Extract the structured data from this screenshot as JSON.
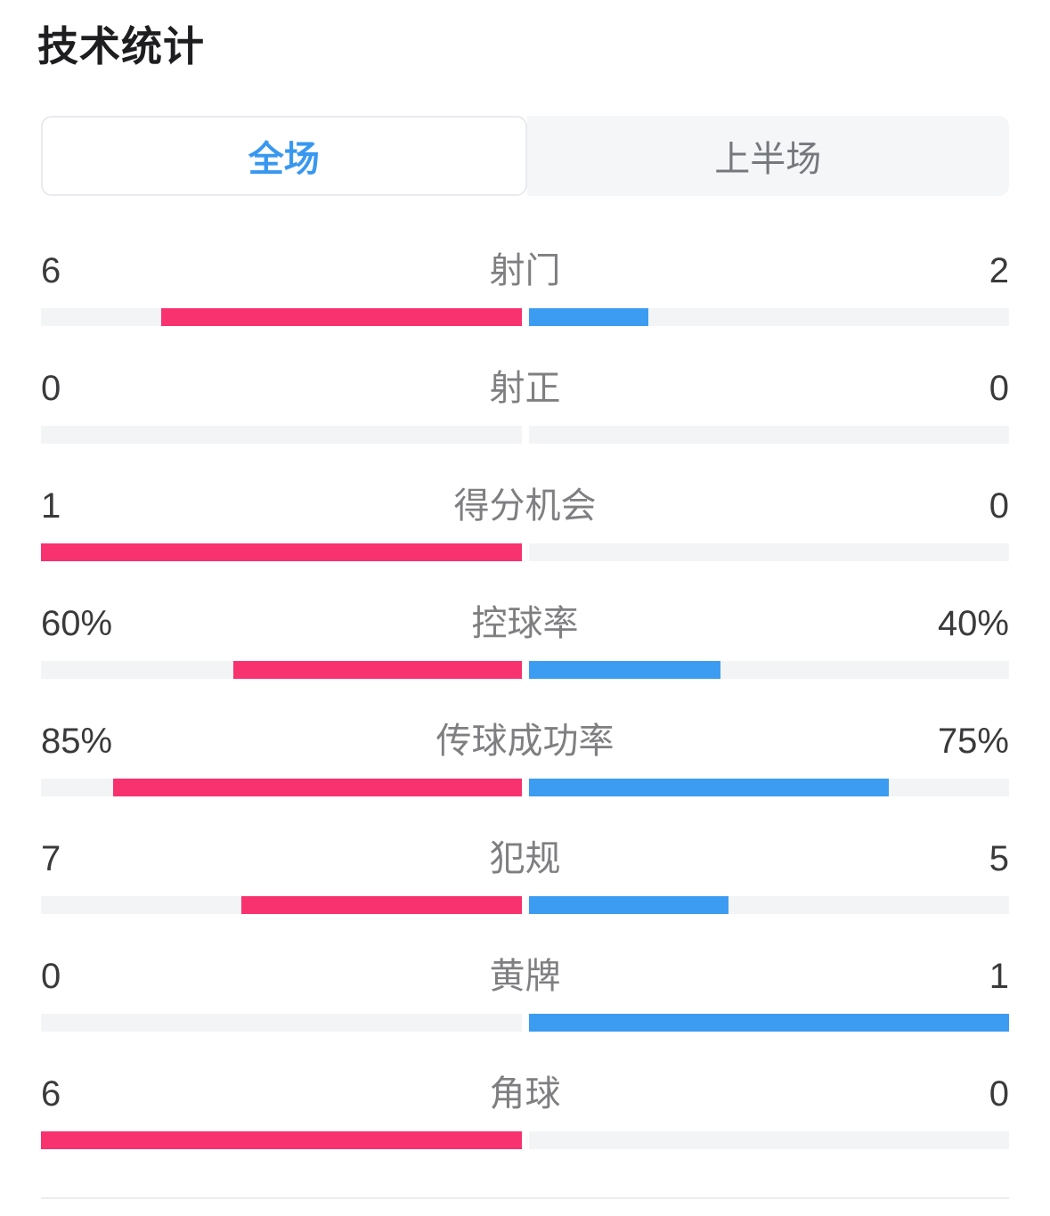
{
  "page": {
    "title": "技术统计"
  },
  "tabs": {
    "full_match": "全场",
    "first_half": "上半场"
  },
  "colors": {
    "home_bar": "#f8316f",
    "away_bar": "#3b9cf1",
    "track": "#f3f4f6",
    "tab_active_text": "#3898f0"
  },
  "stats": {
    "rows": [
      {
        "label": "射门",
        "left": "6",
        "right": "2",
        "bar_left": "75%",
        "bar_right": "25%"
      },
      {
        "label": "射正",
        "left": "0",
        "right": "0",
        "bar_left": "0%",
        "bar_right": "0%"
      },
      {
        "label": "得分机会",
        "left": "1",
        "right": "0",
        "bar_left": "100%",
        "bar_right": "0%"
      },
      {
        "label": "控球率",
        "left": "60%",
        "right": "40%",
        "bar_left": "60%",
        "bar_right": "40%"
      },
      {
        "label": "传球成功率",
        "left": "85%",
        "right": "75%",
        "bar_left": "85%",
        "bar_right": "75%"
      },
      {
        "label": "犯规",
        "left": "7",
        "right": "5",
        "bar_left": "58.33%",
        "bar_right": "41.67%"
      },
      {
        "label": "黄牌",
        "left": "0",
        "right": "1",
        "bar_left": "0%",
        "bar_right": "100%"
      },
      {
        "label": "角球",
        "left": "6",
        "right": "0",
        "bar_left": "100%",
        "bar_right": "0%"
      }
    ]
  }
}
